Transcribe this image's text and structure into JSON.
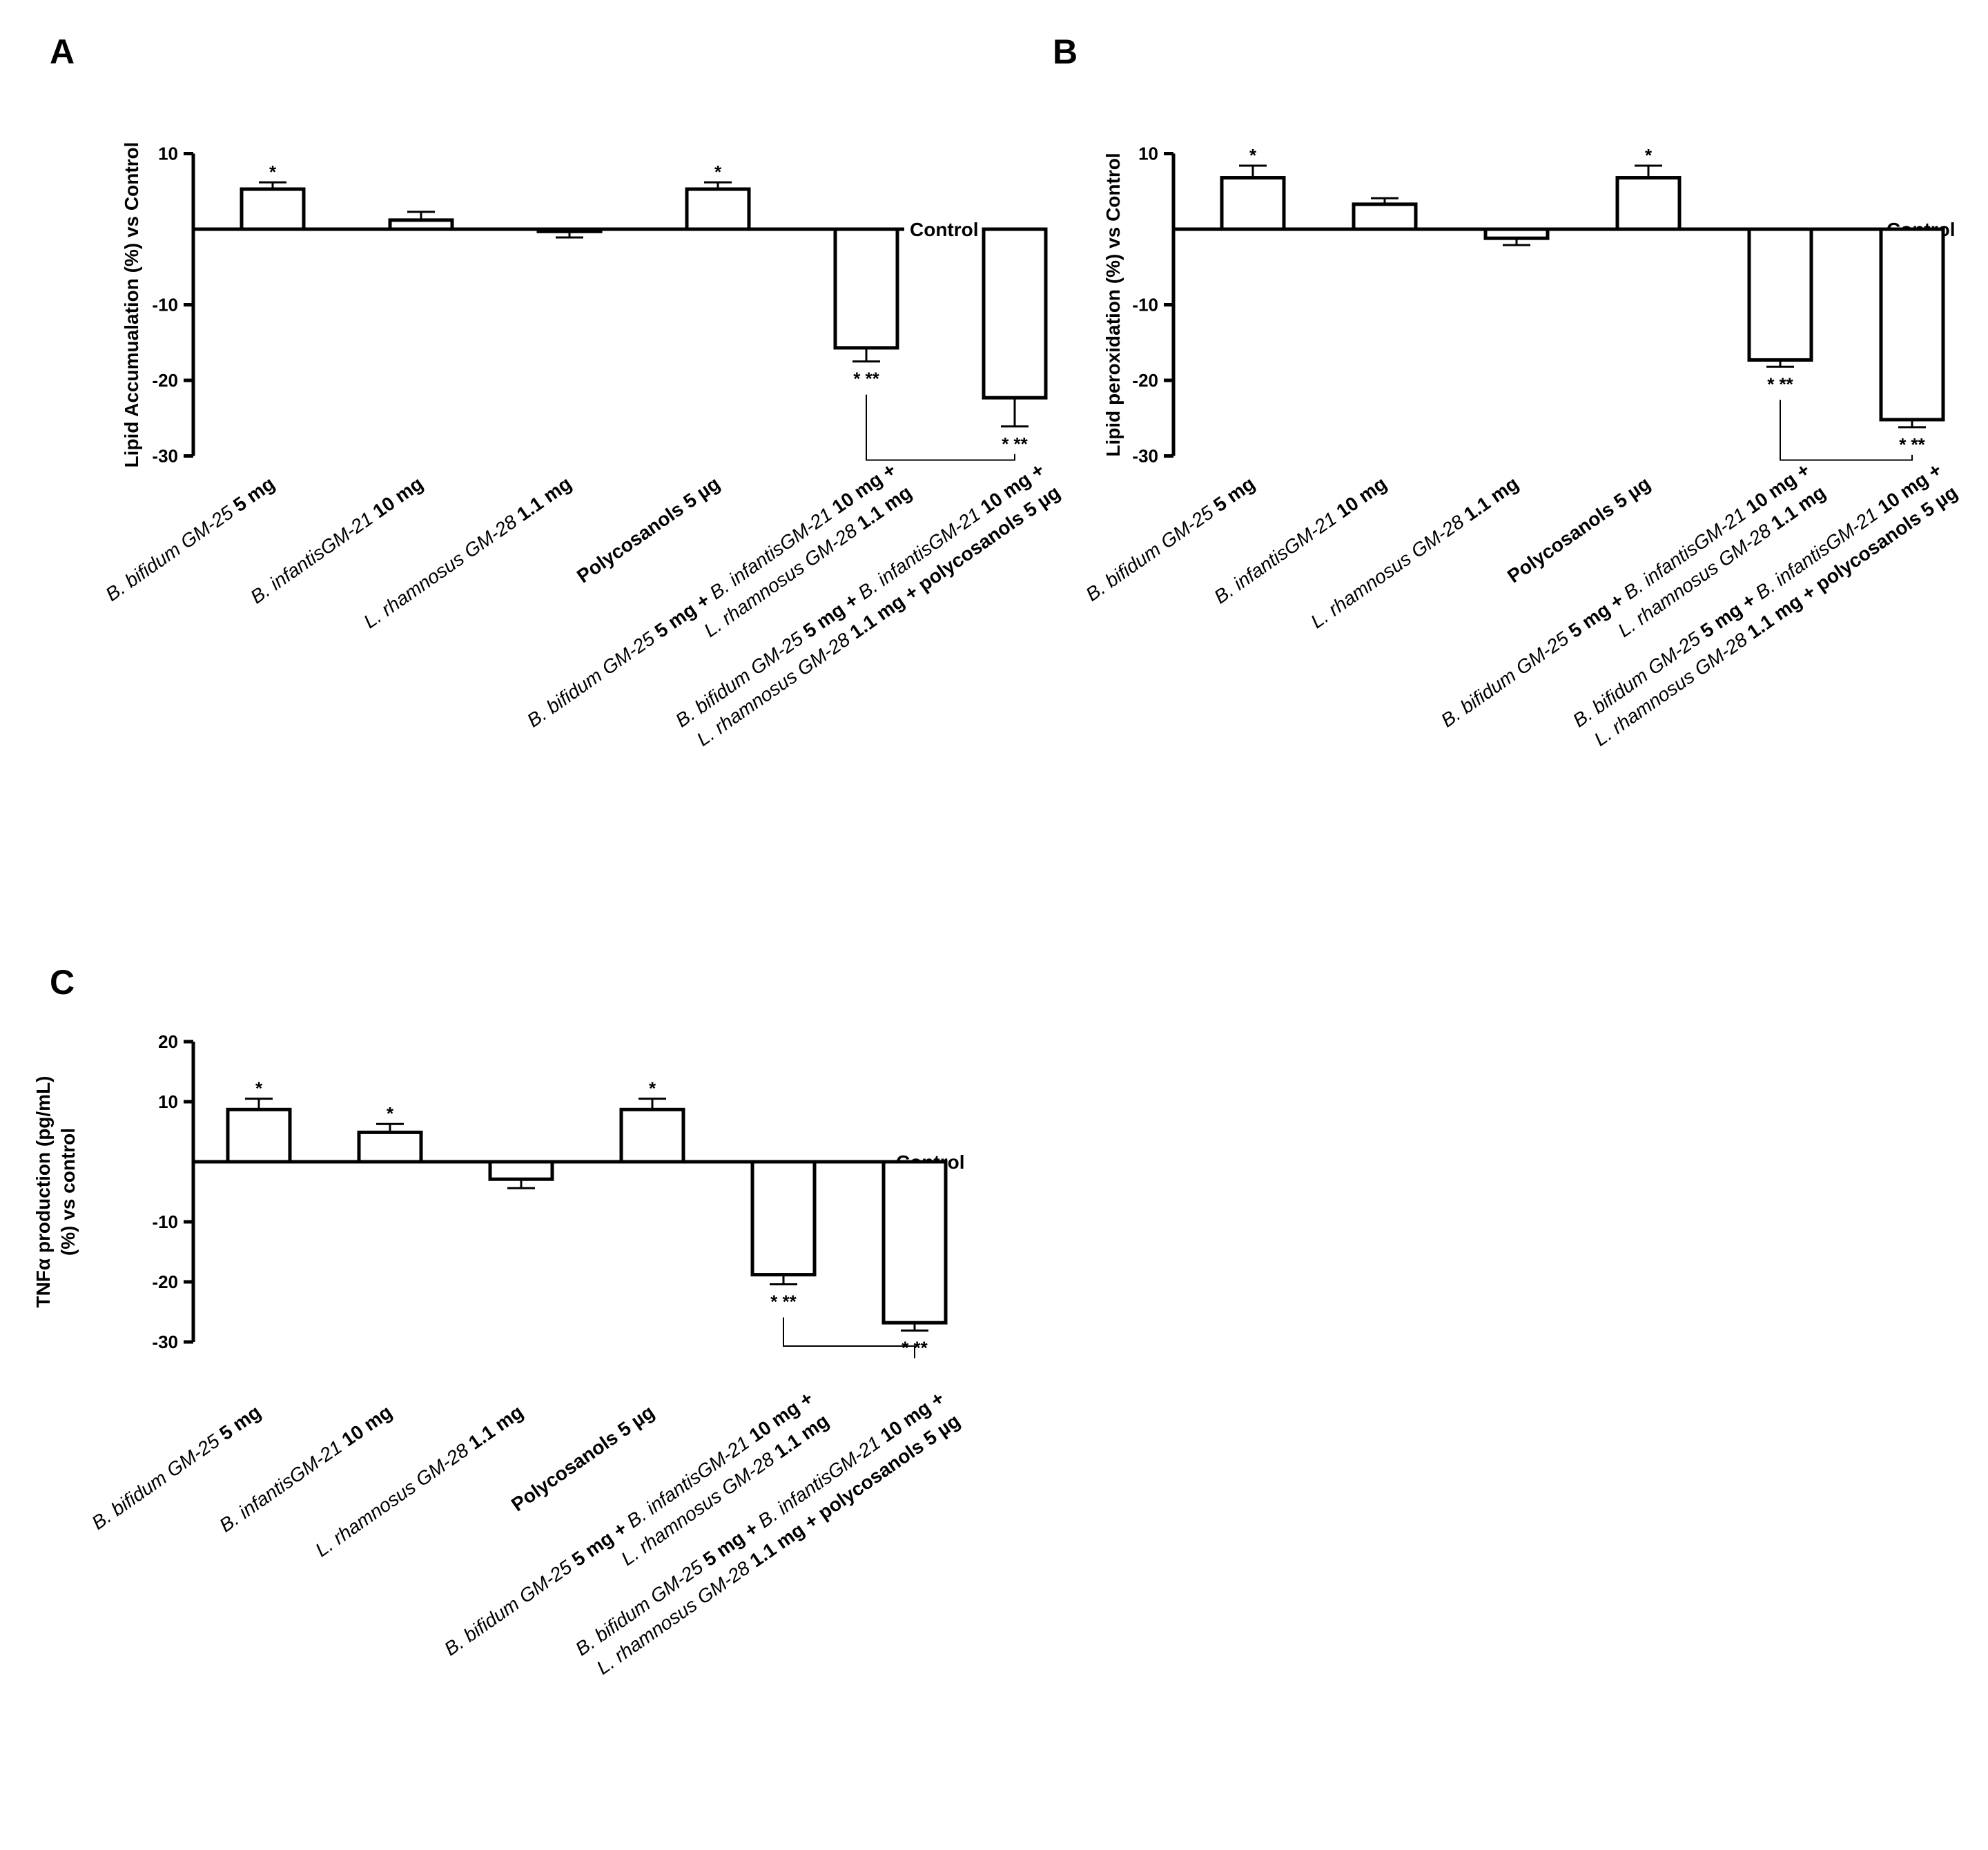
{
  "categories": [
    [
      {
        "t": "B. bifidum GM-25 ",
        "b": false,
        "i": true
      },
      {
        "t": "5 mg",
        "b": true,
        "i": false
      }
    ],
    [
      {
        "t": "B. infantisGM-21 ",
        "b": false,
        "i": true
      },
      {
        "t": "10 mg",
        "b": true,
        "i": false
      }
    ],
    [
      {
        "t": "L. rhamnosus GM-28 ",
        "b": false,
        "i": true
      },
      {
        "t": "1.1 mg",
        "b": true,
        "i": false
      }
    ],
    [
      {
        "t": "Polycosanols 5 µg",
        "b": true,
        "i": false
      }
    ],
    [
      [
        {
          "t": "B. bifidum GM-25 ",
          "b": false,
          "i": true
        },
        {
          "t": "5 mg + ",
          "b": true,
          "i": false
        },
        {
          "t": "B. infantisGM-21 ",
          "b": false,
          "i": true
        },
        {
          "t": "10 mg +",
          "b": true,
          "i": false
        }
      ],
      [
        {
          "t": "L. rhamnosus GM-28 ",
          "b": false,
          "i": true
        },
        {
          "t": "1.1 mg",
          "b": true,
          "i": false
        }
      ]
    ],
    [
      [
        {
          "t": "B. bifidum GM-25 ",
          "b": false,
          "i": true
        },
        {
          "t": "5 mg + ",
          "b": true,
          "i": false
        },
        {
          "t": "B. infantisGM-21 ",
          "b": false,
          "i": true
        },
        {
          "t": "10 mg +",
          "b": true,
          "i": false
        }
      ],
      [
        {
          "t": "L. rhamnosus GM-28 ",
          "b": false,
          "i": true
        },
        {
          "t": "1.1 mg + polycosanols 5 µg",
          "b": true,
          "i": false
        }
      ]
    ]
  ],
  "chart_data": [
    {
      "panel": "A",
      "type": "bar",
      "ylabel": [
        "Lipid Accumualation (%) vs Control"
      ],
      "reference_label": "Control",
      "ylim": [
        -30,
        10
      ],
      "yticks": [
        10,
        -10,
        -20,
        -30
      ],
      "values": [
        5.3,
        1.2,
        -0.3,
        5.3,
        -15.7,
        -22.3
      ],
      "errors": [
        0.9,
        1.1,
        0.8,
        0.9,
        1.8,
        3.8
      ],
      "significance": [
        "*",
        "",
        "",
        "*",
        "*  **",
        "*  **"
      ],
      "comparison": {
        "from": 4,
        "to": 5
      }
    },
    {
      "panel": "B",
      "type": "bar",
      "ylabel": [
        "Lipid peroxidation (%) vs Control"
      ],
      "reference_label": "Control",
      "ylim": [
        -30,
        10
      ],
      "yticks": [
        10,
        -10,
        -20,
        -30
      ],
      "values": [
        6.8,
        3.3,
        -1.2,
        6.8,
        -17.3,
        -25.2
      ],
      "errors": [
        1.6,
        0.8,
        0.9,
        1.6,
        0.9,
        1.0
      ],
      "significance": [
        "*",
        "",
        "",
        "*",
        "*  **",
        "*  **"
      ],
      "comparison": {
        "from": 4,
        "to": 5
      }
    },
    {
      "panel": "C",
      "type": "bar",
      "ylabel": [
        "TNFα production (pg/mL)",
        "(%) vs control"
      ],
      "reference_label": "Control",
      "ylim": [
        -30,
        20
      ],
      "yticks": [
        20,
        10,
        -10,
        -20,
        -30
      ],
      "values": [
        8.7,
        4.9,
        -2.9,
        8.7,
        -18.8,
        -26.8
      ],
      "errors": [
        1.8,
        1.4,
        1.5,
        1.8,
        1.6,
        1.3
      ],
      "significance": [
        "*",
        "*",
        "",
        "*",
        "*  **",
        "*  **"
      ],
      "comparison": {
        "from": 4,
        "to": 5
      }
    }
  ]
}
